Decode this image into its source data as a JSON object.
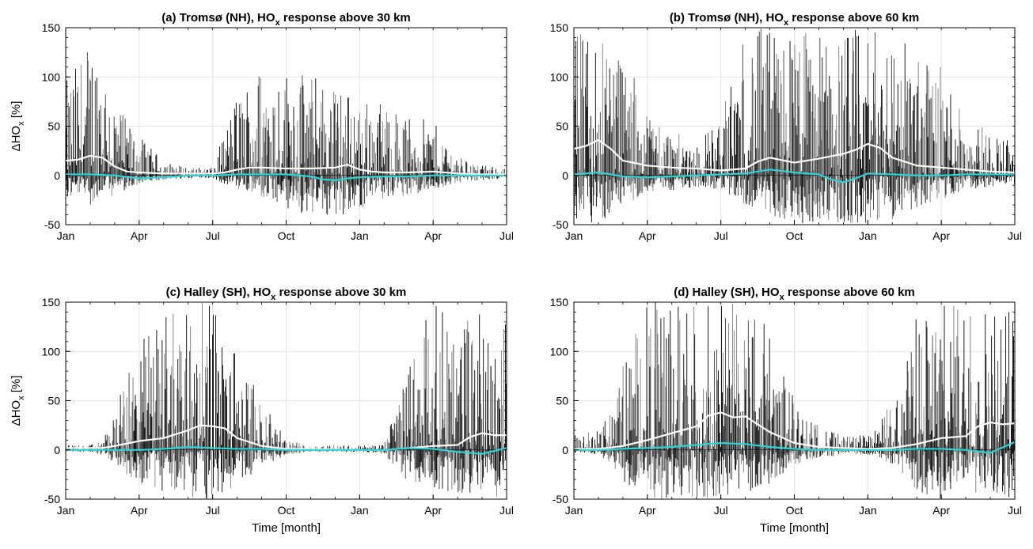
{
  "x_ticks": [
    "Jan",
    "Apr",
    "Jul",
    "Oct",
    "Jan",
    "Apr",
    "Jul"
  ],
  "y_ticks": [
    "-50",
    "0",
    "50",
    "100",
    "150"
  ],
  "xlabel": "Time [month]",
  "ylabel": "ΔHO",
  "ylabel_sub": "x",
  "ylabel_unit": " [%]",
  "colors": {
    "ensemble_mean": "#ffffff",
    "median": "#2dd4d4",
    "fill": "#000000"
  },
  "chart_data": [
    {
      "type": "line",
      "title_pre": "(a) Tromsø (NH), HO",
      "title_sub": "x",
      "title_post": " response above 30 km",
      "ylim": [
        -50,
        150
      ],
      "grid": true,
      "x_range_months": [
        0,
        18
      ],
      "series": [
        {
          "role": "white-line",
          "x": [
            0,
            0.5,
            1,
            1.5,
            2,
            2.5,
            3,
            4,
            5,
            6,
            6.5,
            7,
            7.5,
            8,
            9,
            10,
            11,
            11.5,
            12,
            12.5,
            13,
            14,
            15,
            16,
            17,
            18
          ],
          "values": [
            15,
            16,
            20,
            18,
            9,
            4,
            3,
            2,
            2,
            2,
            3,
            6,
            8,
            8,
            7,
            7,
            8,
            11,
            6,
            4,
            3,
            3,
            4,
            2,
            1,
            1
          ]
        },
        {
          "role": "cyan-line",
          "x": [
            0,
            1,
            2,
            3,
            4,
            5,
            6,
            7,
            8,
            9,
            10,
            10.5,
            11,
            11.5,
            12,
            13,
            14,
            15,
            16,
            17,
            18
          ],
          "values": [
            1,
            1,
            0,
            -3,
            -2,
            0,
            0,
            1,
            1,
            1,
            -1,
            -4,
            -5,
            -3,
            -2,
            -1,
            -1,
            0,
            0,
            0,
            0
          ]
        }
      ],
      "spike_envelope": {
        "x": [
          0,
          1,
          1.5,
          2,
          2.5,
          3,
          4,
          5,
          6,
          7,
          8,
          9,
          10,
          11,
          12,
          13,
          14,
          15,
          16,
          17,
          18
        ],
        "upper": [
          95,
          140,
          130,
          80,
          55,
          40,
          15,
          8,
          8,
          85,
          115,
          110,
          105,
          95,
          80,
          75,
          60,
          55,
          20,
          10,
          8
        ],
        "lower": [
          -25,
          -30,
          -25,
          -20,
          -15,
          -10,
          -5,
          -3,
          -3,
          -15,
          -25,
          -35,
          -40,
          -45,
          -35,
          -25,
          -20,
          -15,
          -8,
          -5,
          -3
        ]
      }
    },
    {
      "type": "line",
      "title_pre": "(b) Tromsø (NH), HO",
      "title_sub": "x",
      "title_post": " response above 60 km",
      "ylim": [
        -50,
        150
      ],
      "grid": true,
      "x_range_months": [
        0,
        18
      ],
      "series": [
        {
          "role": "white-line",
          "x": [
            0,
            0.5,
            1,
            1.5,
            2,
            3,
            4,
            5,
            6,
            7,
            7.5,
            8,
            9,
            10,
            11,
            11.5,
            12,
            12.5,
            13,
            14,
            15,
            16,
            17,
            18
          ],
          "values": [
            27,
            30,
            36,
            27,
            15,
            10,
            8,
            7,
            5,
            7,
            14,
            18,
            13,
            17,
            22,
            26,
            32,
            28,
            18,
            10,
            8,
            6,
            4,
            3
          ]
        },
        {
          "role": "cyan-line",
          "x": [
            0,
            1,
            2,
            3,
            4,
            5,
            6,
            7,
            8,
            9,
            10,
            10.5,
            11,
            11.5,
            12,
            13,
            14,
            15,
            16,
            17,
            18
          ],
          "values": [
            1,
            3,
            -1,
            -2,
            -1,
            0,
            1,
            2,
            6,
            3,
            1,
            -4,
            -7,
            -3,
            2,
            1,
            0,
            0,
            1,
            1,
            1
          ]
        }
      ],
      "spike_envelope": {
        "x": [
          0,
          1,
          1.5,
          2,
          2.5,
          3,
          4,
          5,
          6,
          7,
          8,
          9,
          10,
          11,
          12,
          13,
          14,
          15,
          16,
          17,
          18
        ],
        "upper": [
          150,
          150,
          150,
          130,
          100,
          70,
          45,
          35,
          60,
          150,
          150,
          150,
          150,
          150,
          150,
          150,
          130,
          110,
          70,
          45,
          35
        ],
        "lower": [
          -45,
          -50,
          -40,
          -30,
          -25,
          -20,
          -15,
          -12,
          -15,
          -30,
          -40,
          -50,
          -50,
          -50,
          -50,
          -45,
          -35,
          -25,
          -15,
          -12,
          -10
        ]
      }
    },
    {
      "type": "line",
      "title_pre": "(c) Halley (SH), HO",
      "title_sub": "x",
      "title_post": " response above 30 km",
      "ylim": [
        -50,
        150
      ],
      "grid": true,
      "x_range_months": [
        0,
        18
      ],
      "series": [
        {
          "role": "white-line",
          "x": [
            0,
            1,
            1.5,
            2,
            3,
            4,
            5,
            5.5,
            6,
            6.5,
            7,
            8,
            9,
            10,
            12,
            13,
            14,
            15,
            16,
            16.5,
            17,
            17.5,
            18
          ],
          "values": [
            2,
            2,
            2,
            4,
            9,
            12,
            20,
            25,
            24,
            22,
            12,
            4,
            1,
            1,
            0,
            0,
            2,
            4,
            5,
            13,
            17,
            15,
            15
          ]
        },
        {
          "role": "cyan-line",
          "x": [
            0,
            1,
            2,
            3,
            4,
            5,
            6,
            7,
            8,
            9,
            10,
            11,
            12,
            13,
            14,
            15,
            16,
            17,
            18
          ],
          "values": [
            0,
            0,
            0,
            0,
            1,
            3,
            2,
            1,
            1,
            0,
            0,
            0,
            0,
            0,
            2,
            1,
            -2,
            -4,
            2
          ]
        }
      ],
      "spike_envelope": {
        "x": [
          0,
          1,
          1.5,
          2,
          3,
          4,
          5,
          6,
          7,
          8,
          9,
          10,
          11,
          12,
          13,
          14,
          15,
          16,
          17,
          18
        ],
        "upper": [
          5,
          5,
          10,
          40,
          110,
          150,
          150,
          150,
          100,
          50,
          10,
          5,
          5,
          5,
          5,
          90,
          150,
          140,
          150,
          150
        ],
        "lower": [
          -2,
          -2,
          -5,
          -15,
          -35,
          -45,
          -50,
          -50,
          -40,
          -20,
          -5,
          -2,
          -2,
          -2,
          -5,
          -35,
          -40,
          -45,
          -50,
          -50
        ]
      }
    },
    {
      "type": "line",
      "title_pre": "(d) Halley (SH), HO",
      "title_sub": "x",
      "title_post": " response above 60 km",
      "ylim": [
        -50,
        150
      ],
      "grid": true,
      "x_range_months": [
        0,
        18
      ],
      "series": [
        {
          "role": "white-line",
          "x": [
            0,
            1,
            2,
            3,
            4,
            5,
            5.5,
            6,
            6.5,
            7,
            8,
            9,
            10,
            11,
            12,
            13,
            14,
            15,
            16,
            16.5,
            17,
            17.5,
            18
          ],
          "values": [
            1,
            1,
            4,
            10,
            17,
            24,
            35,
            38,
            33,
            34,
            18,
            7,
            3,
            2,
            1,
            2,
            6,
            12,
            14,
            24,
            28,
            26,
            27
          ]
        },
        {
          "role": "cyan-line",
          "x": [
            0,
            1,
            2,
            3,
            4,
            5,
            6,
            7,
            8,
            9,
            10,
            11,
            12,
            13,
            14,
            15,
            16,
            17,
            18
          ],
          "values": [
            0,
            0,
            1,
            2,
            3,
            5,
            7,
            6,
            3,
            1,
            0,
            0,
            0,
            0,
            1,
            1,
            0,
            -3,
            8
          ]
        }
      ],
      "spike_envelope": {
        "x": [
          0,
          1,
          1.5,
          2,
          3,
          4,
          5,
          6,
          7,
          8,
          9,
          10,
          11,
          12,
          13,
          14,
          15,
          16,
          17,
          18
        ],
        "upper": [
          15,
          20,
          40,
          90,
          150,
          150,
          150,
          150,
          150,
          130,
          50,
          25,
          15,
          15,
          50,
          140,
          150,
          150,
          150,
          150
        ],
        "lower": [
          -3,
          -5,
          -15,
          -35,
          -50,
          -50,
          -50,
          -50,
          -45,
          -35,
          -15,
          -8,
          -5,
          -5,
          -15,
          -45,
          -50,
          -50,
          -50,
          -50
        ]
      }
    }
  ]
}
